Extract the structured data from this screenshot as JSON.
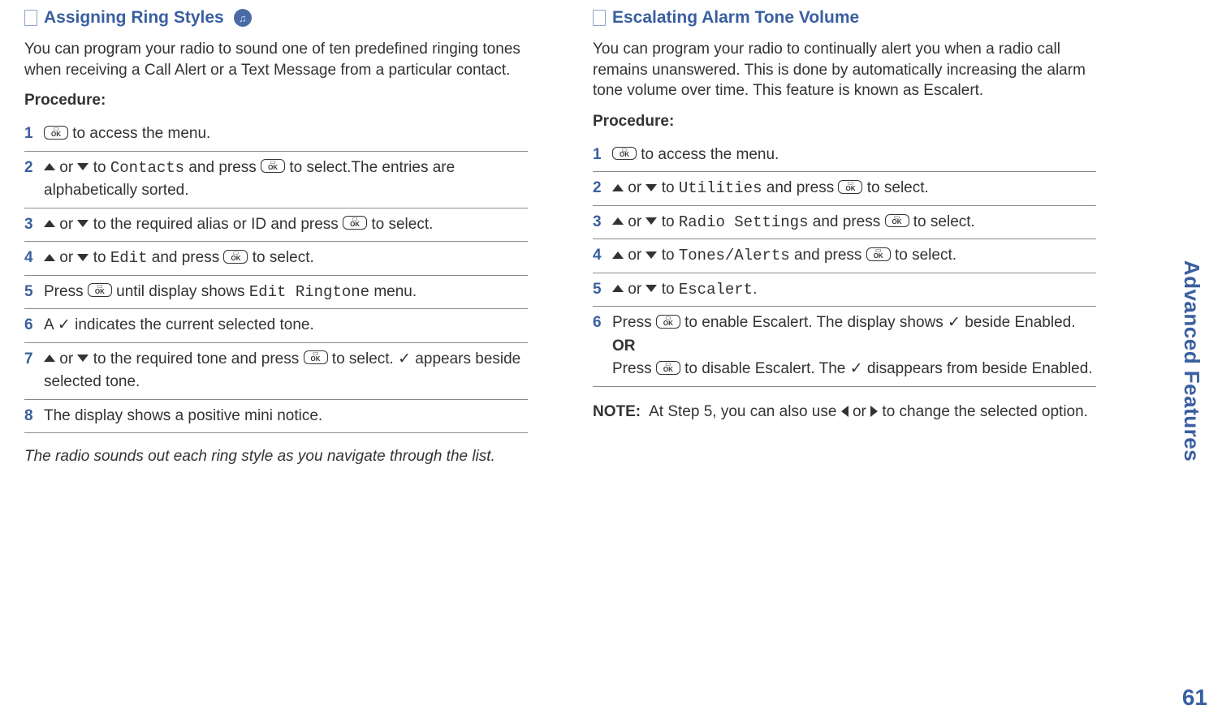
{
  "left": {
    "heading": "Assigning Ring Styles",
    "intro": "You can program your radio to sound one of ten predefined ringing tones when receiving a Call Alert or a Text Message from a particular contact.",
    "procedure_label": "Procedure:",
    "steps": {
      "s1_a": " to access the menu.",
      "s2_or": " or ",
      "s2_to": " to ",
      "s2_contacts": "Contacts",
      "s2_press": " and press ",
      "s2_end": " to select.The entries are alphabetically sorted.",
      "s3_to": " to the required alias or ID and press ",
      "s3_end": " to select.",
      "s4_to": " to ",
      "s4_edit": "Edit",
      "s4_press": " and press ",
      "s4_end": " to select.",
      "s5_a": "Press ",
      "s5_b": " until display shows ",
      "s5_menu": "Edit Ringtone",
      "s5_end": " menu.",
      "s6": "A ✓ indicates the current selected tone.",
      "s7_to": " to the required tone and press ",
      "s7_end": " to select. ✓ appears beside selected tone.",
      "s8": "The display shows a positive mini notice."
    },
    "footnote": "The radio sounds out each ring style as you navigate through the list."
  },
  "right": {
    "heading": "Escalating Alarm Tone Volume",
    "intro": "You can program your radio to continually alert you when a radio call remains unanswered. This is done by automatically increasing the alarm tone volume over time. This feature is known as Escalert.",
    "procedure_label": "Procedure:",
    "steps": {
      "s1_a": " to access the menu.",
      "s2_to": " to ",
      "s2_util": "Utilities",
      "s2_press": " and press ",
      "s2_end": " to select.",
      "s3_to": " to ",
      "s3_rs": "Radio Settings",
      "s3_press": " and press ",
      "s3_end": " to select.",
      "s4_to": " to ",
      "s4_ta": "Tones/Alerts",
      "s4_press": " and press ",
      "s4_end": " to select.",
      "s5_to": " to ",
      "s5_esc": "Escalert",
      "s5_end": ".",
      "s6_a": "Press ",
      "s6_b": " to enable Escalert. The display shows ✓ beside Enabled.",
      "s6_or": "OR",
      "s6_c": "Press ",
      "s6_d": " to disable Escalert. The ✓ disappears from beside Enabled."
    },
    "note_label": "NOTE:",
    "note_a": "At Step 5, you can also use ",
    "note_or": " or ",
    "note_b": " to change the selected option."
  },
  "sidebar": "Advanced Features",
  "page_number": "61",
  "nums": {
    "n1": "1",
    "n2": "2",
    "n3": "3",
    "n4": "4",
    "n5": "5",
    "n6": "6",
    "n7": "7",
    "n8": "8"
  },
  "or_word": " or ",
  "colors": {
    "heading": "#3a5fa0",
    "text": "#333333",
    "rule": "#8a8a8a"
  }
}
